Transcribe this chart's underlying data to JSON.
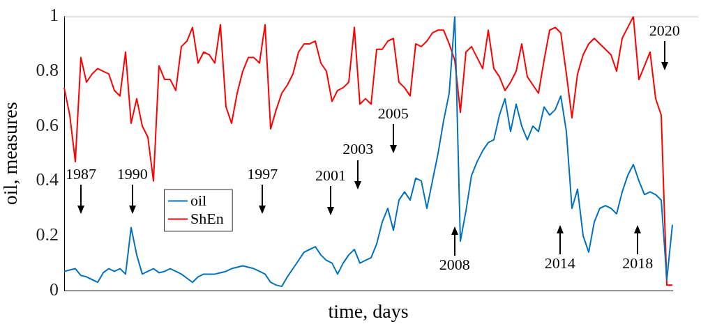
{
  "chart_data": {
    "type": "line",
    "xlabel": "time, days",
    "ylabel": "oil, measures",
    "categories": [
      null,
      null,
      null,
      null,
      null,
      null,
      null,
      null,
      null,
      null,
      null,
      null,
      null,
      null,
      null,
      null,
      null,
      null,
      null,
      null,
      null,
      null,
      null,
      null,
      null,
      null,
      null,
      null,
      null,
      null,
      null,
      null,
      null,
      null,
      null,
      null,
      null,
      null,
      null,
      null,
      null,
      null,
      null,
      null,
      null,
      null,
      null,
      null,
      null,
      null,
      null,
      null,
      null,
      null,
      null,
      null,
      null,
      null,
      null,
      null,
      null,
      null,
      null,
      null,
      null,
      null,
      null,
      null,
      null,
      null,
      null,
      null,
      null,
      null,
      null,
      null,
      null,
      null,
      null,
      null,
      null,
      null,
      null,
      null,
      null,
      null,
      null,
      null,
      null,
      null,
      null,
      null,
      null,
      null,
      null,
      null,
      null,
      null,
      null,
      null,
      null,
      null,
      null,
      null,
      null,
      null,
      null,
      null,
      null,
      null
    ],
    "ylim": [
      0,
      1
    ],
    "yticks": [
      0,
      0.2,
      0.4,
      0.6,
      0.8,
      1
    ],
    "tick_labels": "y",
    "legend": "bottom left",
    "series": [
      {
        "name": "oil",
        "color": "#0072bd",
        "values": [
          0.07,
          0.075,
          0.08,
          0.055,
          0.05,
          0.04,
          0.03,
          0.065,
          0.08,
          0.07,
          0.08,
          0.06,
          0.23,
          0.13,
          0.06,
          0.07,
          0.08,
          0.065,
          0.07,
          0.08,
          0.07,
          0.06,
          0.045,
          0.03,
          0.05,
          0.06,
          0.06,
          0.06,
          0.065,
          0.07,
          0.08,
          0.085,
          0.09,
          0.085,
          0.08,
          0.07,
          0.06,
          0.03,
          0.02,
          0.015,
          0.05,
          0.08,
          0.11,
          0.14,
          0.15,
          0.16,
          0.13,
          0.11,
          0.1,
          0.06,
          0.1,
          0.13,
          0.15,
          0.1,
          0.11,
          0.12,
          0.17,
          0.25,
          0.3,
          0.22,
          0.33,
          0.36,
          0.33,
          0.41,
          0.4,
          0.3,
          0.4,
          0.5,
          0.62,
          0.72,
          1,
          0.18,
          0.29,
          0.42,
          0.47,
          0.51,
          0.54,
          0.55,
          0.64,
          0.7,
          0.58,
          0.68,
          0.6,
          0.55,
          0.6,
          0.58,
          0.67,
          0.64,
          0.66,
          0.71,
          0.58,
          0.3,
          0.37,
          0.2,
          0.14,
          0.25,
          0.3,
          0.31,
          0.3,
          0.28,
          0.36,
          0.42,
          0.46,
          0.4,
          0.35,
          0.36,
          0.35,
          0.33,
          0.04,
          0.24
        ]
      },
      {
        "name": "ShEn",
        "color": "#ff0000",
        "values": [
          0.74,
          0.64,
          0.47,
          0.85,
          0.76,
          0.79,
          0.81,
          0.8,
          0.79,
          0.73,
          0.71,
          0.87,
          0.61,
          0.7,
          0.6,
          0.56,
          0.4,
          0.82,
          0.77,
          0.77,
          0.73,
          0.89,
          0.91,
          0.96,
          0.83,
          0.87,
          0.86,
          0.83,
          0.97,
          0.67,
          0.61,
          0.72,
          0.8,
          0.85,
          0.85,
          0.83,
          0.97,
          0.59,
          0.66,
          0.72,
          0.75,
          0.79,
          0.87,
          0.9,
          0.9,
          0.91,
          0.83,
          0.8,
          0.69,
          0.73,
          0.74,
          0.76,
          0.96,
          0.68,
          0.7,
          0.68,
          0.88,
          0.88,
          0.91,
          0.92,
          0.76,
          0.74,
          0.71,
          0.9,
          0.89,
          0.91,
          0.94,
          0.95,
          0.95,
          0.9,
          0.84,
          0.65,
          0.87,
          0.89,
          0.85,
          0.81,
          0.95,
          0.81,
          0.78,
          0.73,
          0.76,
          0.8,
          0.9,
          0.78,
          0.75,
          0.72,
          0.84,
          0.95,
          0.96,
          0.94,
          0.79,
          0.63,
          0.79,
          0.86,
          0.9,
          0.92,
          0.9,
          0.88,
          0.86,
          0.8,
          0.92,
          0.96,
          1,
          0.77,
          0.82,
          0.87,
          0.7,
          0.64,
          0.02,
          0.02
        ]
      }
    ],
    "annotations": [
      "1987",
      "1990",
      "1997",
      "2001",
      "2003",
      "2005",
      "2008",
      "2014",
      "2018",
      "2020"
    ]
  }
}
